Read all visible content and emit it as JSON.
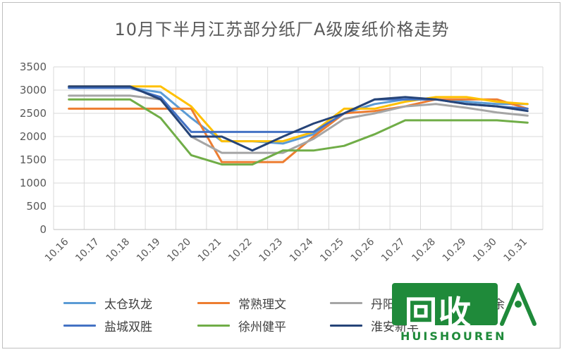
{
  "chart_data": {
    "type": "line",
    "title": "10月下半月江苏部分纸厂A级废纸价格走势",
    "categories": [
      "10.16",
      "10.17",
      "10.18",
      "10.19",
      "10.20",
      "10.21",
      "10.22",
      "10.23",
      "10.24",
      "10.25",
      "10.26",
      "10.27",
      "10.28",
      "10.29",
      "10.30",
      "10.31"
    ],
    "ylim": [
      0,
      3500
    ],
    "yticks": [
      0,
      500,
      1000,
      1500,
      2000,
      2500,
      3000,
      3500
    ],
    "grid": true,
    "legend_position": "bottom",
    "series": [
      {
        "name": "太仓玖龙",
        "color": "#5b9bd5",
        "values": [
          3050,
          3050,
          3050,
          2950,
          2400,
          1900,
          1900,
          1850,
          2050,
          2500,
          2700,
          2800,
          2800,
          2750,
          2700,
          2700
        ]
      },
      {
        "name": "常熟理文",
        "color": "#ed7d31",
        "values": [
          2600,
          2600,
          2600,
          2600,
          2600,
          1450,
          1450,
          1450,
          2000,
          2500,
          2550,
          2650,
          2800,
          2800,
          2800,
          2600
        ]
      },
      {
        "name": "丹阳长丰",
        "color": "#a5a5a5",
        "values": [
          2880,
          2880,
          2880,
          2800,
          2000,
          1650,
          1650,
          1650,
          1950,
          2380,
          2500,
          2650,
          2700,
          2620,
          2520,
          2450
        ]
      },
      {
        "name": "",
        "color": "#ffc000",
        "values": [
          3080,
          3080,
          3080,
          3080,
          2650,
          1900,
          1900,
          1900,
          2100,
          2600,
          2600,
          2750,
          2850,
          2850,
          2750,
          2700
        ]
      },
      {
        "name": "盐城双胜",
        "color": "#4472c4",
        "values": [
          3050,
          3050,
          3050,
          2850,
          2100,
          2100,
          2100,
          2100,
          2100,
          2500,
          2800,
          2800,
          2800,
          2700,
          2650,
          2600
        ]
      },
      {
        "name": "徐州健平",
        "color": "#70ad47",
        "values": [
          2800,
          2800,
          2800,
          2400,
          1600,
          1400,
          1400,
          1700,
          1700,
          1800,
          2050,
          2350,
          2350,
          2350,
          2350,
          2300
        ]
      },
      {
        "name": "淮安新丰",
        "color": "#264478",
        "values": [
          3080,
          3080,
          3080,
          2800,
          2000,
          2000,
          1700,
          2000,
          2280,
          2500,
          2800,
          2850,
          2800,
          2700,
          2650,
          2550
        ]
      }
    ]
  },
  "legend": {
    "items": [
      {
        "label": "太仓玖龙",
        "color": "#5b9bd5"
      },
      {
        "label": "常熟理文",
        "color": "#ed7d31"
      },
      {
        "label": "丹阳长丰",
        "color": "#a5a5a5"
      },
      {
        "label": "丰余",
        "color": "#ffc000"
      },
      {
        "label": "盐城双胜",
        "color": "#4472c4"
      },
      {
        "label": "徐州健平",
        "color": "#70ad47"
      },
      {
        "label": "淮安新丰",
        "color": "#264478"
      }
    ]
  },
  "watermark": {
    "logo_text": "回收",
    "sub_text": "HUISHOUREN",
    "color": "#1f8a3a"
  }
}
